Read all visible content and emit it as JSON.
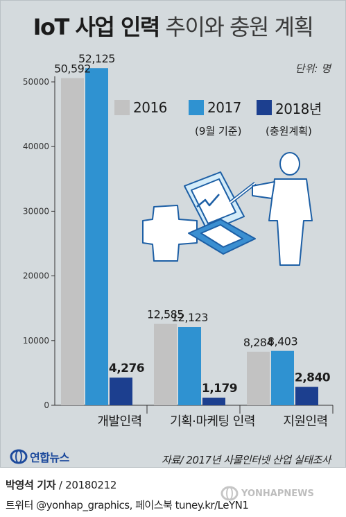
{
  "title_bold": "IoT 사업 인력",
  "title_light": "추이와 충원 계획",
  "unit": "단위: 명",
  "source": "자료/ 2017년 사물인터넷 산업 실태조사",
  "logo_text": "연합뉴스",
  "credit_name": "박영석 기자",
  "credit_date": "/ 20180212",
  "social": "트위터 @yonhap_graphics, 페이스북 tuney.kr/LeYN1",
  "watermark": "YONHAPNEWS",
  "chart_data": {
    "type": "bar",
    "categories": [
      "개발인력",
      "기획·마케팅 인력",
      "지원인력"
    ],
    "series": [
      {
        "name": "2016",
        "note": "",
        "color": "#c2c2c2",
        "values": [
          50592,
          12585,
          8284
        ],
        "labels": [
          "50,592",
          "12,585",
          "8,284"
        ]
      },
      {
        "name": "2017",
        "note": "(9월 기준)",
        "color": "#2f92d1",
        "values": [
          52125,
          12123,
          8403
        ],
        "labels": [
          "52,125",
          "12,123",
          "8,403"
        ]
      },
      {
        "name": "2018년",
        "note": "(충원계획)",
        "color": "#1c3f8f",
        "values": [
          4276,
          1179,
          2840
        ],
        "labels": [
          "4,276",
          "1,179",
          "2,840"
        ]
      }
    ],
    "yticks": [
      0,
      10000,
      20000,
      30000,
      40000,
      50000
    ],
    "ylim": [
      0,
      50000
    ],
    "xlabel": "",
    "ylabel": ""
  }
}
